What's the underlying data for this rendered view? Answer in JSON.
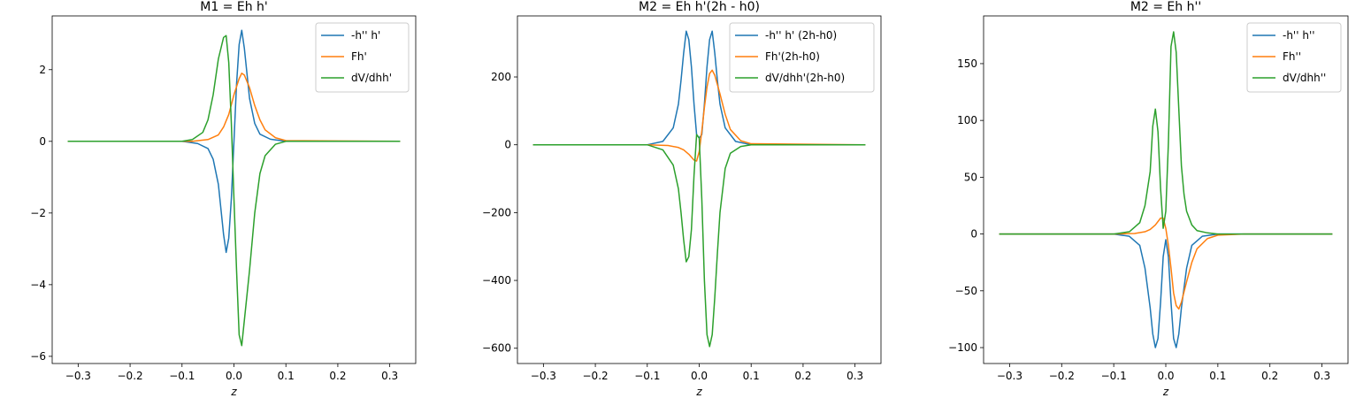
{
  "chart_data": [
    {
      "type": "line",
      "title": "M1 = Eh h'",
      "xlabel": "z",
      "ylabel": "",
      "xlim": [
        -0.35,
        0.35
      ],
      "ylim": [
        -6.2,
        3.5
      ],
      "xticks": [
        -0.3,
        -0.2,
        -0.1,
        0.0,
        0.1,
        0.2,
        0.3
      ],
      "yticks": [
        -6,
        -4,
        -2,
        0,
        2
      ],
      "legend": "top-right",
      "grid": false,
      "series": [
        {
          "name": "-h'' h'",
          "color": "#1f77b4",
          "x": [
            -0.32,
            -0.1,
            -0.07,
            -0.05,
            -0.04,
            -0.03,
            -0.02,
            -0.015,
            -0.01,
            -0.005,
            0.0,
            0.005,
            0.01,
            0.015,
            0.02,
            0.03,
            0.04,
            0.05,
            0.07,
            0.1,
            0.32
          ],
          "y": [
            0,
            0,
            -0.06,
            -0.2,
            -0.5,
            -1.2,
            -2.6,
            -3.1,
            -2.7,
            -1.6,
            0.0,
            1.6,
            2.7,
            3.1,
            2.6,
            1.2,
            0.5,
            0.2,
            0.06,
            0,
            0
          ]
        },
        {
          "name": "Fh'",
          "color": "#ff7f0e",
          "x": [
            -0.32,
            -0.08,
            -0.05,
            -0.03,
            -0.02,
            -0.01,
            0.0,
            0.01,
            0.015,
            0.02,
            0.03,
            0.04,
            0.05,
            0.06,
            0.08,
            0.1,
            0.32
          ],
          "y": [
            0,
            0,
            0.05,
            0.18,
            0.4,
            0.75,
            1.3,
            1.75,
            1.9,
            1.85,
            1.5,
            1.0,
            0.6,
            0.32,
            0.1,
            0.02,
            0
          ]
        },
        {
          "name": "dV/dhh'",
          "color": "#2ca02c",
          "x": [
            -0.32,
            -0.1,
            -0.08,
            -0.06,
            -0.05,
            -0.04,
            -0.03,
            -0.02,
            -0.015,
            -0.01,
            -0.005,
            0.0,
            0.005,
            0.01,
            0.015,
            0.02,
            0.03,
            0.04,
            0.05,
            0.06,
            0.08,
            0.1,
            0.32
          ],
          "y": [
            0,
            0,
            0.05,
            0.25,
            0.6,
            1.3,
            2.3,
            2.9,
            2.95,
            2.2,
            0.5,
            -1.6,
            -3.6,
            -5.4,
            -5.7,
            -5.0,
            -3.6,
            -2.0,
            -0.9,
            -0.4,
            -0.08,
            0,
            0
          ]
        }
      ]
    },
    {
      "type": "line",
      "title": "M2 = Eh h'(2h - h0)",
      "xlabel": "z",
      "ylabel": "",
      "xlim": [
        -0.35,
        0.35
      ],
      "ylim": [
        -645,
        380
      ],
      "xticks": [
        -0.3,
        -0.2,
        -0.1,
        0.0,
        0.1,
        0.2,
        0.3
      ],
      "yticks": [
        -600,
        -400,
        -200,
        0,
        200
      ],
      "legend": "top-right",
      "grid": false,
      "series": [
        {
          "name": "-h'' h' (2h-h0)",
          "color": "#1f77b4",
          "x": [
            -0.32,
            -0.1,
            -0.07,
            -0.05,
            -0.04,
            -0.035,
            -0.03,
            -0.025,
            -0.02,
            -0.015,
            -0.01,
            -0.005,
            0.0,
            0.005,
            0.01,
            0.015,
            0.02,
            0.025,
            0.03,
            0.035,
            0.04,
            0.05,
            0.07,
            0.1,
            0.32
          ],
          "y": [
            0,
            0,
            10,
            50,
            120,
            190,
            270,
            335,
            310,
            230,
            120,
            30,
            20,
            30,
            120,
            230,
            310,
            335,
            270,
            190,
            120,
            50,
            10,
            0,
            0
          ]
        },
        {
          "name": "Fh'(2h-h0)",
          "color": "#ff7f0e",
          "x": [
            -0.32,
            -0.1,
            -0.06,
            -0.04,
            -0.03,
            -0.02,
            -0.01,
            -0.005,
            0.0,
            0.005,
            0.01,
            0.015,
            0.02,
            0.025,
            0.03,
            0.04,
            0.05,
            0.06,
            0.08,
            0.1,
            0.32
          ],
          "y": [
            0,
            0,
            -2,
            -8,
            -15,
            -28,
            -45,
            -48,
            -20,
            40,
            110,
            170,
            210,
            220,
            205,
            150,
            90,
            45,
            12,
            3,
            0
          ]
        },
        {
          "name": "dV/dhh'(2h-h0)",
          "color": "#2ca02c",
          "x": [
            -0.32,
            -0.1,
            -0.07,
            -0.05,
            -0.04,
            -0.035,
            -0.03,
            -0.025,
            -0.02,
            -0.015,
            -0.01,
            -0.005,
            0.0,
            0.005,
            0.01,
            0.015,
            0.02,
            0.025,
            0.03,
            0.035,
            0.04,
            0.05,
            0.06,
            0.08,
            0.1,
            0.32
          ],
          "y": [
            0,
            0,
            -15,
            -60,
            -130,
            -200,
            -280,
            -345,
            -330,
            -250,
            -90,
            30,
            20,
            -160,
            -400,
            -560,
            -595,
            -560,
            -450,
            -320,
            -200,
            -70,
            -25,
            -5,
            0,
            0
          ]
        }
      ]
    },
    {
      "type": "line",
      "title": "M2 = Eh h''",
      "xlabel": "z",
      "ylabel": "",
      "xlim": [
        -0.35,
        0.35
      ],
      "ylim": [
        -114,
        192
      ],
      "xticks": [
        -0.3,
        -0.2,
        -0.1,
        0.0,
        0.1,
        0.2,
        0.3
      ],
      "yticks": [
        -100,
        -50,
        0,
        50,
        100,
        150
      ],
      "legend": "top-right",
      "grid": false,
      "series": [
        {
          "name": "-h'' h''",
          "color": "#1f77b4",
          "x": [
            -0.32,
            -0.1,
            -0.07,
            -0.05,
            -0.04,
            -0.03,
            -0.025,
            -0.02,
            -0.015,
            -0.01,
            -0.005,
            0.0,
            0.005,
            0.01,
            0.015,
            0.02,
            0.025,
            0.03,
            0.04,
            0.05,
            0.07,
            0.1,
            0.32
          ],
          "y": [
            0,
            0,
            -2,
            -10,
            -30,
            -65,
            -88,
            -100,
            -92,
            -60,
            -20,
            -5,
            -20,
            -60,
            -92,
            -100,
            -88,
            -65,
            -30,
            -10,
            -2,
            0,
            0
          ]
        },
        {
          "name": "Fh''",
          "color": "#ff7f0e",
          "x": [
            -0.32,
            -0.1,
            -0.06,
            -0.04,
            -0.03,
            -0.02,
            -0.01,
            -0.005,
            0.0,
            0.005,
            0.01,
            0.015,
            0.02,
            0.025,
            0.03,
            0.04,
            0.05,
            0.06,
            0.08,
            0.1,
            0.15,
            0.32
          ],
          "y": [
            0,
            0,
            0.5,
            2,
            4,
            8,
            14,
            14,
            5,
            -10,
            -30,
            -52,
            -63,
            -66,
            -60,
            -42,
            -25,
            -13,
            -4,
            -1,
            0,
            0
          ]
        },
        {
          "name": "dV/dhh''",
          "color": "#2ca02c",
          "x": [
            -0.32,
            -0.1,
            -0.07,
            -0.05,
            -0.04,
            -0.03,
            -0.025,
            -0.02,
            -0.015,
            -0.01,
            -0.005,
            0.0,
            0.005,
            0.01,
            0.015,
            0.02,
            0.025,
            0.03,
            0.035,
            0.04,
            0.05,
            0.06,
            0.08,
            0.1,
            0.32
          ],
          "y": [
            0,
            0,
            2,
            10,
            25,
            55,
            95,
            110,
            90,
            40,
            5,
            20,
            80,
            165,
            178,
            160,
            110,
            60,
            35,
            20,
            8,
            3,
            1,
            0,
            0
          ]
        }
      ]
    }
  ]
}
